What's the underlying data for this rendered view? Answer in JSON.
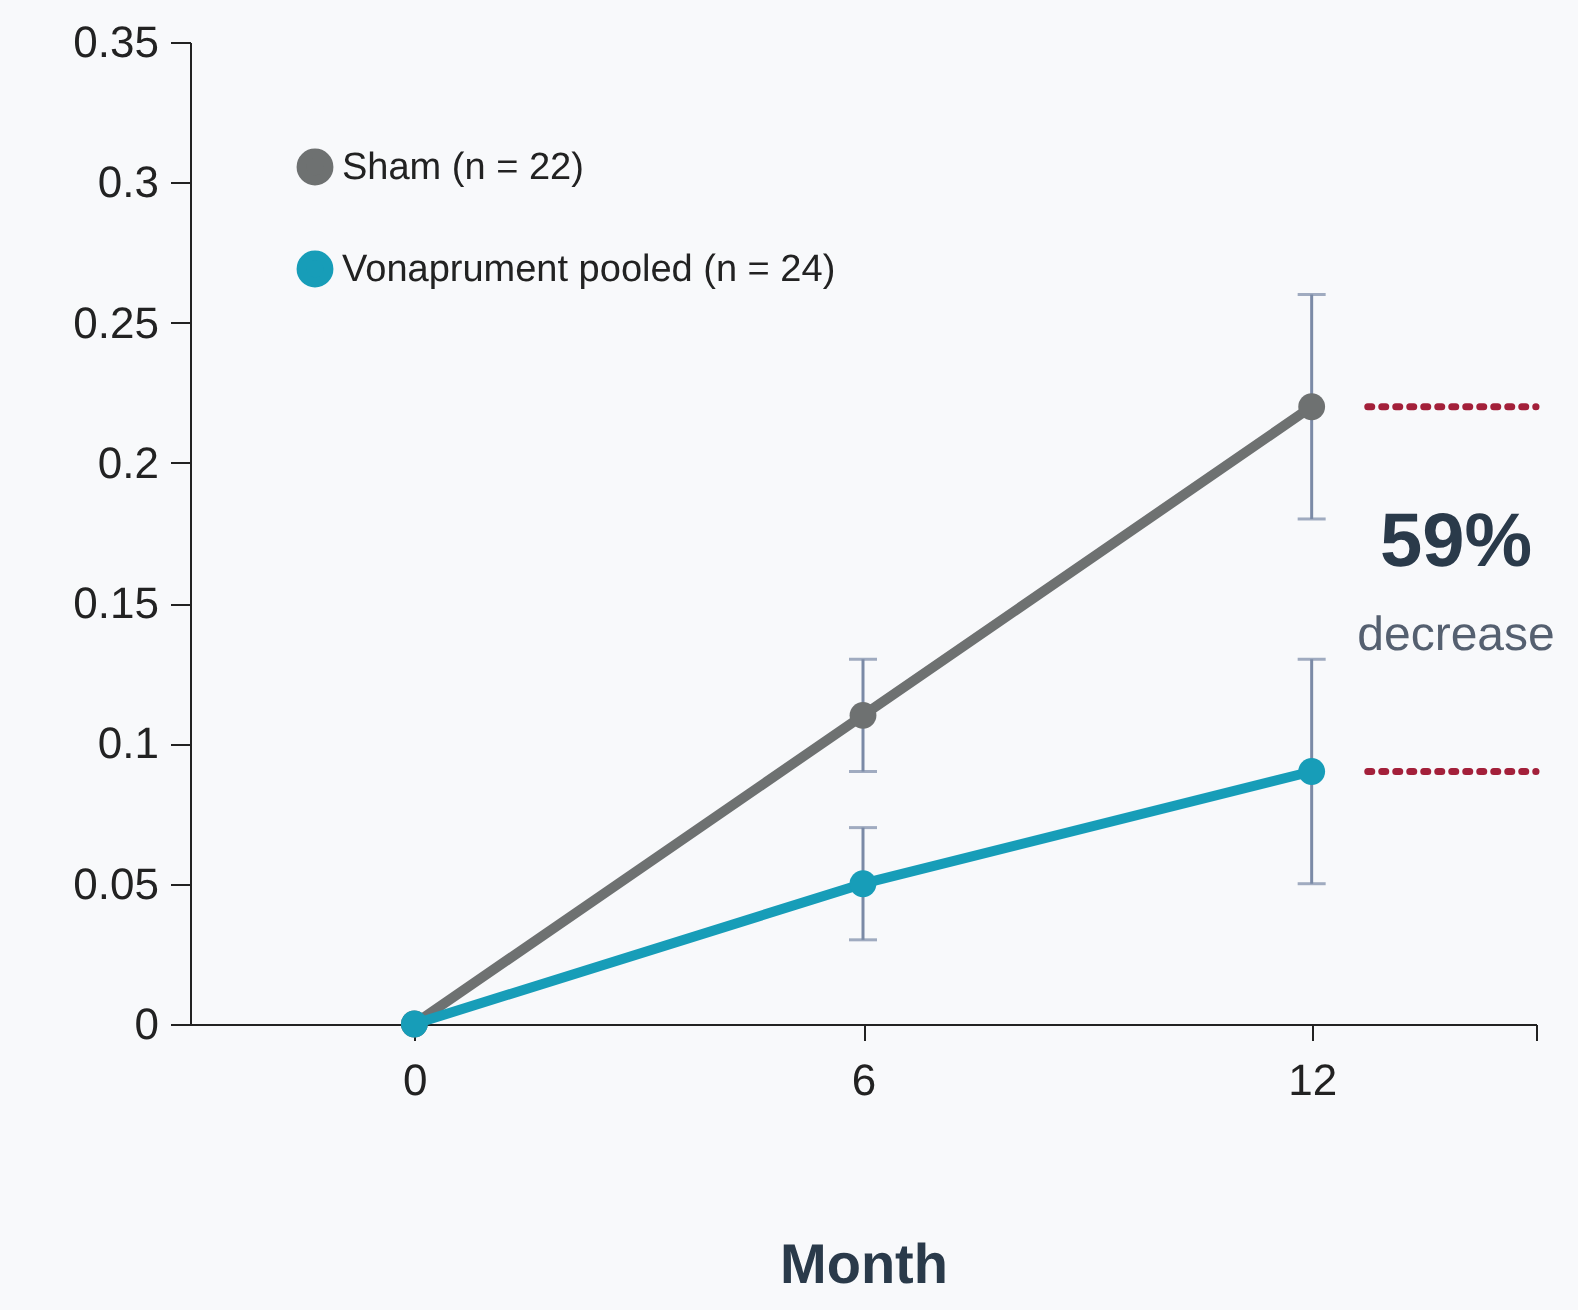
{
  "chart_data": {
    "type": "line",
    "xlabel": "Month",
    "x": [
      0,
      6,
      12
    ],
    "series": [
      {
        "name": "Sham (n = 22)",
        "color": "#6e7171",
        "values": [
          0,
          0.11,
          0.22
        ],
        "errors": [
          null,
          0.02,
          0.04
        ]
      },
      {
        "name": "Vonaprument pooled (n = 24)",
        "color": "#179db8",
        "values": [
          0,
          0.05,
          0.09
        ],
        "errors": [
          null,
          0.02,
          0.04
        ]
      }
    ],
    "xlim": [
      -3,
      15
    ],
    "xticks": [
      0,
      6,
      12,
      {
        "value": 15,
        "label": null
      }
    ],
    "ylim": [
      0,
      0.35
    ],
    "yticks": [
      0,
      0.05,
      0.1,
      0.15,
      0.2,
      0.25,
      0.3,
      0.35
    ],
    "ref_lines": [
      {
        "axis": "y",
        "value": 0.22,
        "color": "#a3203a",
        "line_style": "dotted"
      },
      {
        "axis": "y",
        "value": 0.09,
        "color": "#a3203a",
        "line_style": "dotted"
      }
    ],
    "annotations": [
      "59%",
      "decrease"
    ],
    "legend": "top left",
    "marker": "circle",
    "line_style": "solid",
    "grid": false
  }
}
